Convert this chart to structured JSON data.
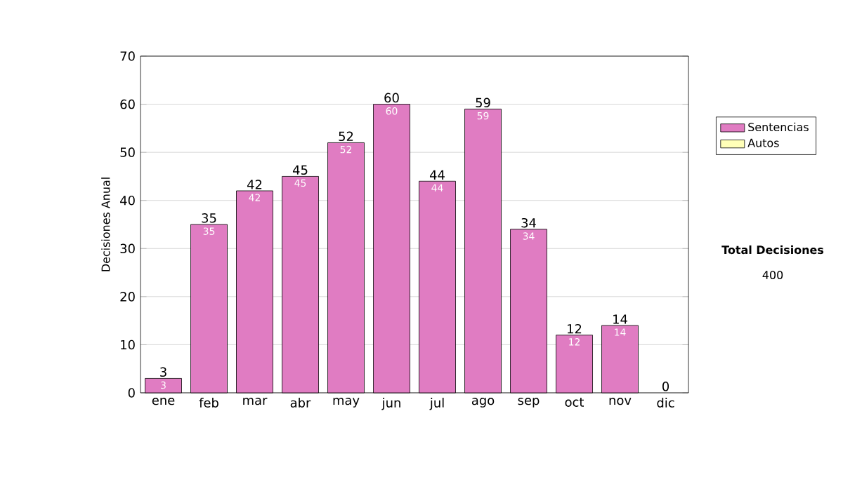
{
  "chart_data": {
    "type": "bar",
    "stacked": true,
    "ylabel": "Decisiones Anual",
    "categories": [
      "ene",
      "feb",
      "mar",
      "abr",
      "may",
      "jun",
      "jul",
      "ago",
      "sep",
      "oct",
      "nov",
      "dic"
    ],
    "series": [
      {
        "name": "Sentencias",
        "color": "#e07cc2",
        "values": [
          3,
          35,
          42,
          45,
          52,
          60,
          44,
          59,
          34,
          12,
          14,
          0
        ],
        "value_labels": [
          "3",
          "35",
          "42",
          "45",
          "52",
          "60",
          "44",
          "59",
          "34",
          "12",
          "14",
          null
        ]
      },
      {
        "name": "Autos",
        "color": "#ffffb8",
        "values": [
          0,
          0,
          0,
          0,
          0,
          0,
          0,
          0,
          0,
          0,
          0,
          0
        ]
      }
    ],
    "totals": [
      "3",
      "35",
      "42",
      "45",
      "52",
      "60",
      "44",
      "59",
      "34",
      "12",
      "14",
      "0"
    ],
    "ylim": [
      0,
      70
    ],
    "yticks": [
      0,
      10,
      20,
      30,
      40,
      50,
      60,
      70
    ],
    "grid": "y",
    "legend": "right",
    "annotations": [
      "Total Decisiones",
      "400"
    ]
  }
}
